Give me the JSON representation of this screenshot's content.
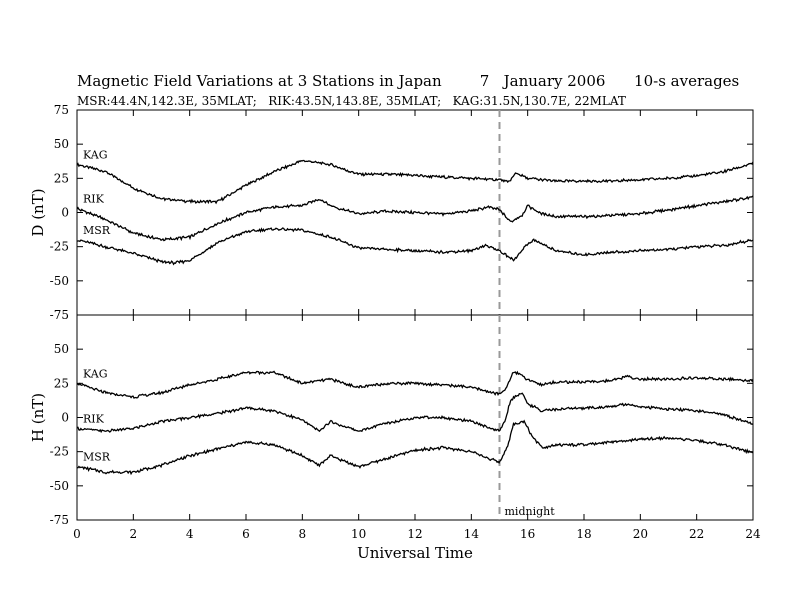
{
  "title": "Magnetic Field Variations at 3 Stations in Japan        7   January 2006      10-s averages",
  "subtitle": "MSR:44.4N,142.3E, 35MLAT;   RIK:43.5N,143.8E, 35MLAT;   KAG:31.5N,130.7E, 22MLAT",
  "chart_data": [
    {
      "type": "line",
      "panel": "top",
      "ylabel": "D (nT)",
      "ylim": [
        -75,
        75
      ],
      "yticks": [
        -75,
        -50,
        -25,
        0,
        25,
        50,
        75
      ],
      "xlim": [
        0,
        24
      ],
      "xticks": [
        0,
        2,
        4,
        6,
        8,
        10,
        12,
        14,
        16,
        18,
        20,
        22,
        24
      ],
      "marker": {
        "x": 15,
        "style": "dashed"
      },
      "series": [
        {
          "name": "KAG",
          "x": [
            0,
            1,
            2,
            3,
            4,
            5,
            6,
            7,
            8,
            9,
            10,
            11,
            12,
            13,
            14,
            15,
            15.3,
            15.6,
            16,
            17,
            18,
            19,
            20,
            21,
            22,
            23,
            24
          ],
          "values": [
            35,
            30,
            18,
            10,
            8,
            8,
            20,
            30,
            38,
            35,
            28,
            28,
            27,
            26,
            25,
            24,
            22,
            29,
            25,
            23,
            23,
            23,
            24,
            25,
            27,
            30,
            36
          ]
        },
        {
          "name": "RIK",
          "x": [
            0,
            1,
            2,
            3,
            4,
            5,
            6,
            7,
            8,
            8.6,
            9,
            10,
            11,
            12,
            13,
            14,
            14.6,
            15,
            15.4,
            15.8,
            16,
            16.4,
            17,
            18,
            19,
            20,
            21,
            22,
            23,
            24
          ],
          "values": [
            3,
            -5,
            -15,
            -20,
            -18,
            -8,
            0,
            4,
            5,
            10,
            5,
            -1,
            1,
            0,
            -1,
            1,
            4,
            2,
            -7,
            -2,
            5,
            0,
            -3,
            -3,
            -2,
            -1,
            2,
            5,
            8,
            11
          ]
        },
        {
          "name": "MSR",
          "x": [
            0,
            1,
            2,
            3,
            3.5,
            4,
            5,
            6,
            7,
            8,
            9,
            10,
            11,
            12,
            13,
            14,
            14.5,
            15,
            15.5,
            15.9,
            16.2,
            17,
            18,
            19,
            20,
            21,
            22,
            23,
            24
          ],
          "values": [
            -20,
            -25,
            -30,
            -36,
            -37,
            -35,
            -22,
            -14,
            -12,
            -13,
            -18,
            -26,
            -27,
            -28,
            -29,
            -28,
            -24,
            -28,
            -35,
            -25,
            -20,
            -28,
            -31,
            -29,
            -28,
            -27,
            -25,
            -24,
            -20
          ]
        }
      ]
    },
    {
      "type": "line",
      "panel": "bottom",
      "ylabel": "H (nT)",
      "xlabel": "Universal Time",
      "ylim": [
        -75,
        75
      ],
      "yticks": [
        -75,
        -50,
        -25,
        0,
        25,
        50,
        75
      ],
      "xlim": [
        0,
        24
      ],
      "xticks": [
        0,
        2,
        4,
        6,
        8,
        10,
        12,
        14,
        16,
        18,
        20,
        22,
        24
      ],
      "marker": {
        "x": 15,
        "label": "midnight",
        "style": "dashed"
      },
      "series": [
        {
          "name": "KAG",
          "x": [
            0,
            1,
            2,
            3,
            4,
            5,
            6,
            7,
            8,
            9,
            10,
            11,
            12,
            13,
            14,
            15,
            15.2,
            15.5,
            16,
            16.5,
            17,
            18,
            19,
            19.5,
            20,
            21,
            22,
            23,
            24
          ],
          "values": [
            25,
            18,
            15,
            18,
            24,
            28,
            33,
            33,
            25,
            28,
            22,
            25,
            25,
            24,
            22,
            17,
            20,
            34,
            28,
            24,
            26,
            26,
            27,
            30,
            28,
            28,
            29,
            28,
            27
          ]
        },
        {
          "name": "RIK",
          "x": [
            0,
            1,
            2,
            3,
            4,
            5,
            6,
            7,
            8,
            8.6,
            9,
            10,
            11,
            12,
            13,
            14,
            15,
            15.2,
            15.4,
            15.8,
            16,
            16.5,
            17,
            18,
            19,
            19.5,
            20,
            21,
            22,
            23,
            24
          ],
          "values": [
            -8,
            -10,
            -8,
            -3,
            0,
            3,
            7,
            5,
            -2,
            -10,
            -3,
            -10,
            -4,
            0,
            0,
            -3,
            -10,
            -2,
            13,
            18,
            10,
            5,
            6,
            7,
            8,
            10,
            8,
            6,
            5,
            2,
            -5
          ]
        },
        {
          "name": "MSR",
          "x": [
            0,
            1,
            2,
            3,
            4,
            5,
            6,
            7,
            8,
            8.6,
            9,
            10,
            11,
            12,
            13,
            14,
            15,
            15.3,
            15.5,
            15.9,
            16.1,
            16.5,
            17,
            18,
            19,
            20,
            21,
            22,
            23,
            24
          ],
          "values": [
            -36,
            -40,
            -40,
            -35,
            -28,
            -23,
            -18,
            -20,
            -28,
            -35,
            -28,
            -36,
            -30,
            -24,
            -22,
            -25,
            -33,
            -20,
            -5,
            -3,
            -12,
            -22,
            -20,
            -20,
            -18,
            -16,
            -15,
            -17,
            -20,
            -26
          ]
        }
      ]
    }
  ]
}
